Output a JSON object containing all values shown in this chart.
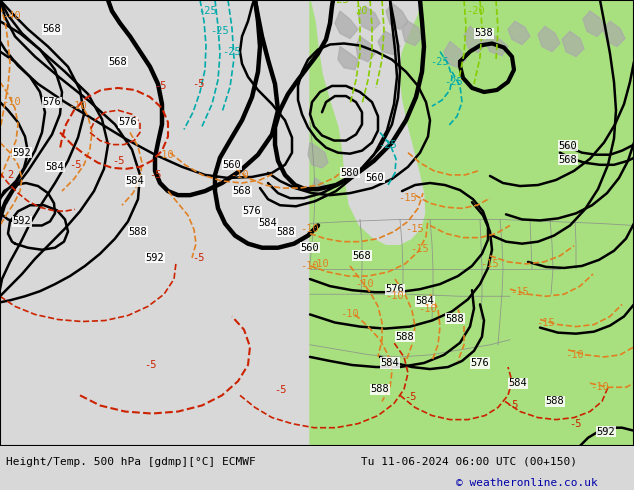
{
  "title_left": "Height/Temp. 500 hPa [gdmp][°C] ECMWF",
  "title_right": "Tu 11-06-2024 06:00 UTC (00+150)",
  "copyright": "© weatheronline.co.uk",
  "fig_width": 6.34,
  "fig_height": 4.9,
  "dpi": 100,
  "font_size_title": 8.0,
  "font_size_copy": 8.0,
  "copyright_color": "#0000aa",
  "bg_color": "#d8d8d8",
  "map_bg": "#d0d0d0",
  "green": "#a8e080",
  "gray_land": "#aaaaaa",
  "orange": "#e08020",
  "red": "#cc2200",
  "cyan": "#00aaaa",
  "ygreen": "#88cc00",
  "black_lw": 1.8,
  "temp_lw": 1.2
}
